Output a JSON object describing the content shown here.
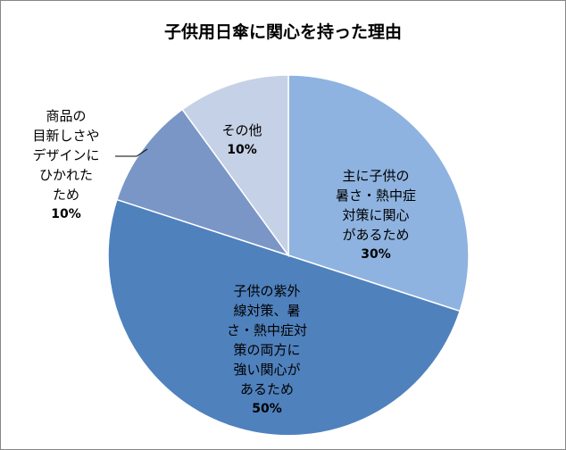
{
  "chart_data": {
    "type": "pie",
    "title": "子供用日傘に関心を持った理由",
    "slices": [
      {
        "label": "主に子供の\n暑さ・熱中症\n対策に関心\nがあるため",
        "value": 30,
        "value_label": "30%",
        "color": "#8eb3e0"
      },
      {
        "label": "子供の紫外\n線対策、暑\nさ・熱中症対\n策の両方に\n強い関心が\nあるため",
        "value": 50,
        "value_label": "50%",
        "color": "#4f81bd"
      },
      {
        "label": "商品の\n目新しさや\nデザインに\nひかれた\nため",
        "value": 10,
        "value_label": "10%",
        "color": "#7a96c6"
      },
      {
        "label": "その他",
        "value": 10,
        "value_label": "10%",
        "color": "#c5d1e6"
      }
    ],
    "start_angle_deg": 0,
    "direction": "clockwise",
    "legend": "none"
  }
}
